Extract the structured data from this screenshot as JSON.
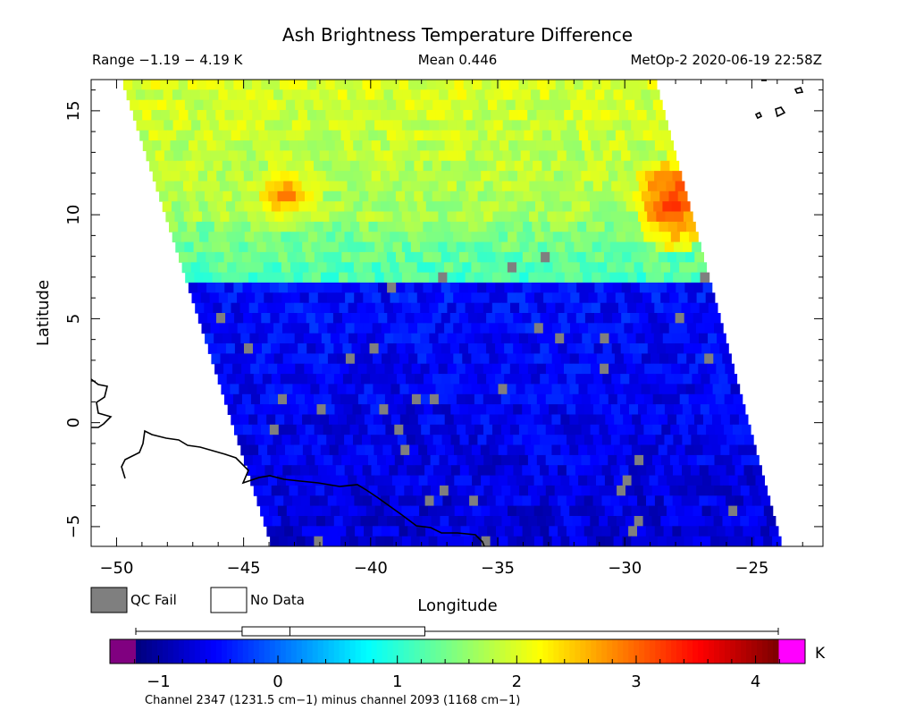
{
  "chart_data": {
    "type": "heatmap",
    "title": "Ash Brightness Temperature Difference",
    "subtitle_left": "Range −1.19 − 4.19 K",
    "subtitle_center": "Mean 0.446",
    "subtitle_right": "MetOp-2 2020-06-19 22:58Z",
    "xlabel": "Longitude",
    "ylabel": "Latitude",
    "xlim": [
      -51,
      -22.2
    ],
    "ylim": [
      -5.95,
      16.5
    ],
    "x_ticks": [
      -50,
      -45,
      -40,
      -35,
      -30,
      -25
    ],
    "x_tick_labels": [
      "−50",
      "−45",
      "−40",
      "−35",
      "−30",
      "−25"
    ],
    "y_ticks": [
      -5,
      0,
      5,
      10,
      15
    ],
    "y_tick_labels": [
      "−5",
      "0",
      "5",
      "10",
      "15"
    ],
    "swath_lon_at_top": [
      -49.8,
      -28.8
    ],
    "swath_lon_at_bottom": [
      -43.9,
      -23.8
    ],
    "value_range": [
      -1.19,
      4.19
    ],
    "mean": 0.446,
    "features": [
      {
        "lat": [
          8,
          16.5
        ],
        "value": 1.7,
        "note": "yellow-green band"
      },
      {
        "lat": [
          6.5,
          9.5
        ],
        "value": 1.1,
        "note": "cyan transition"
      },
      {
        "lat": [
          -6,
          6.5
        ],
        "value": -0.5,
        "note": "blue background"
      },
      {
        "lon": -43.3,
        "lat": 10.9,
        "value": 2.9,
        "note": "orange patch"
      },
      {
        "lon": -28.1,
        "lat": 10.6,
        "value": 3.6,
        "note": "red/dark red patch"
      }
    ],
    "legend": [
      {
        "label": "QC Fail",
        "color": "#7f7f7f"
      },
      {
        "label": "No Data",
        "color": "#ffffff"
      }
    ],
    "colorbar": {
      "unit": "K",
      "range": [
        -1.4,
        4.4
      ],
      "ticks": [
        -1,
        0,
        1,
        2,
        3,
        4
      ],
      "tick_labels": [
        "−1",
        "0",
        "1",
        "2",
        "3",
        "4"
      ],
      "under_color": "#800080",
      "over_color": "#ff00ff",
      "box_whisker": {
        "min": -1.19,
        "q1": -0.3,
        "median": 0.1,
        "q3": 1.23,
        "max": 4.19
      },
      "caption": "Channel 2347 (1231.5 cm−1) minus channel 2093 (1168 cm−1)"
    },
    "grid": false
  }
}
